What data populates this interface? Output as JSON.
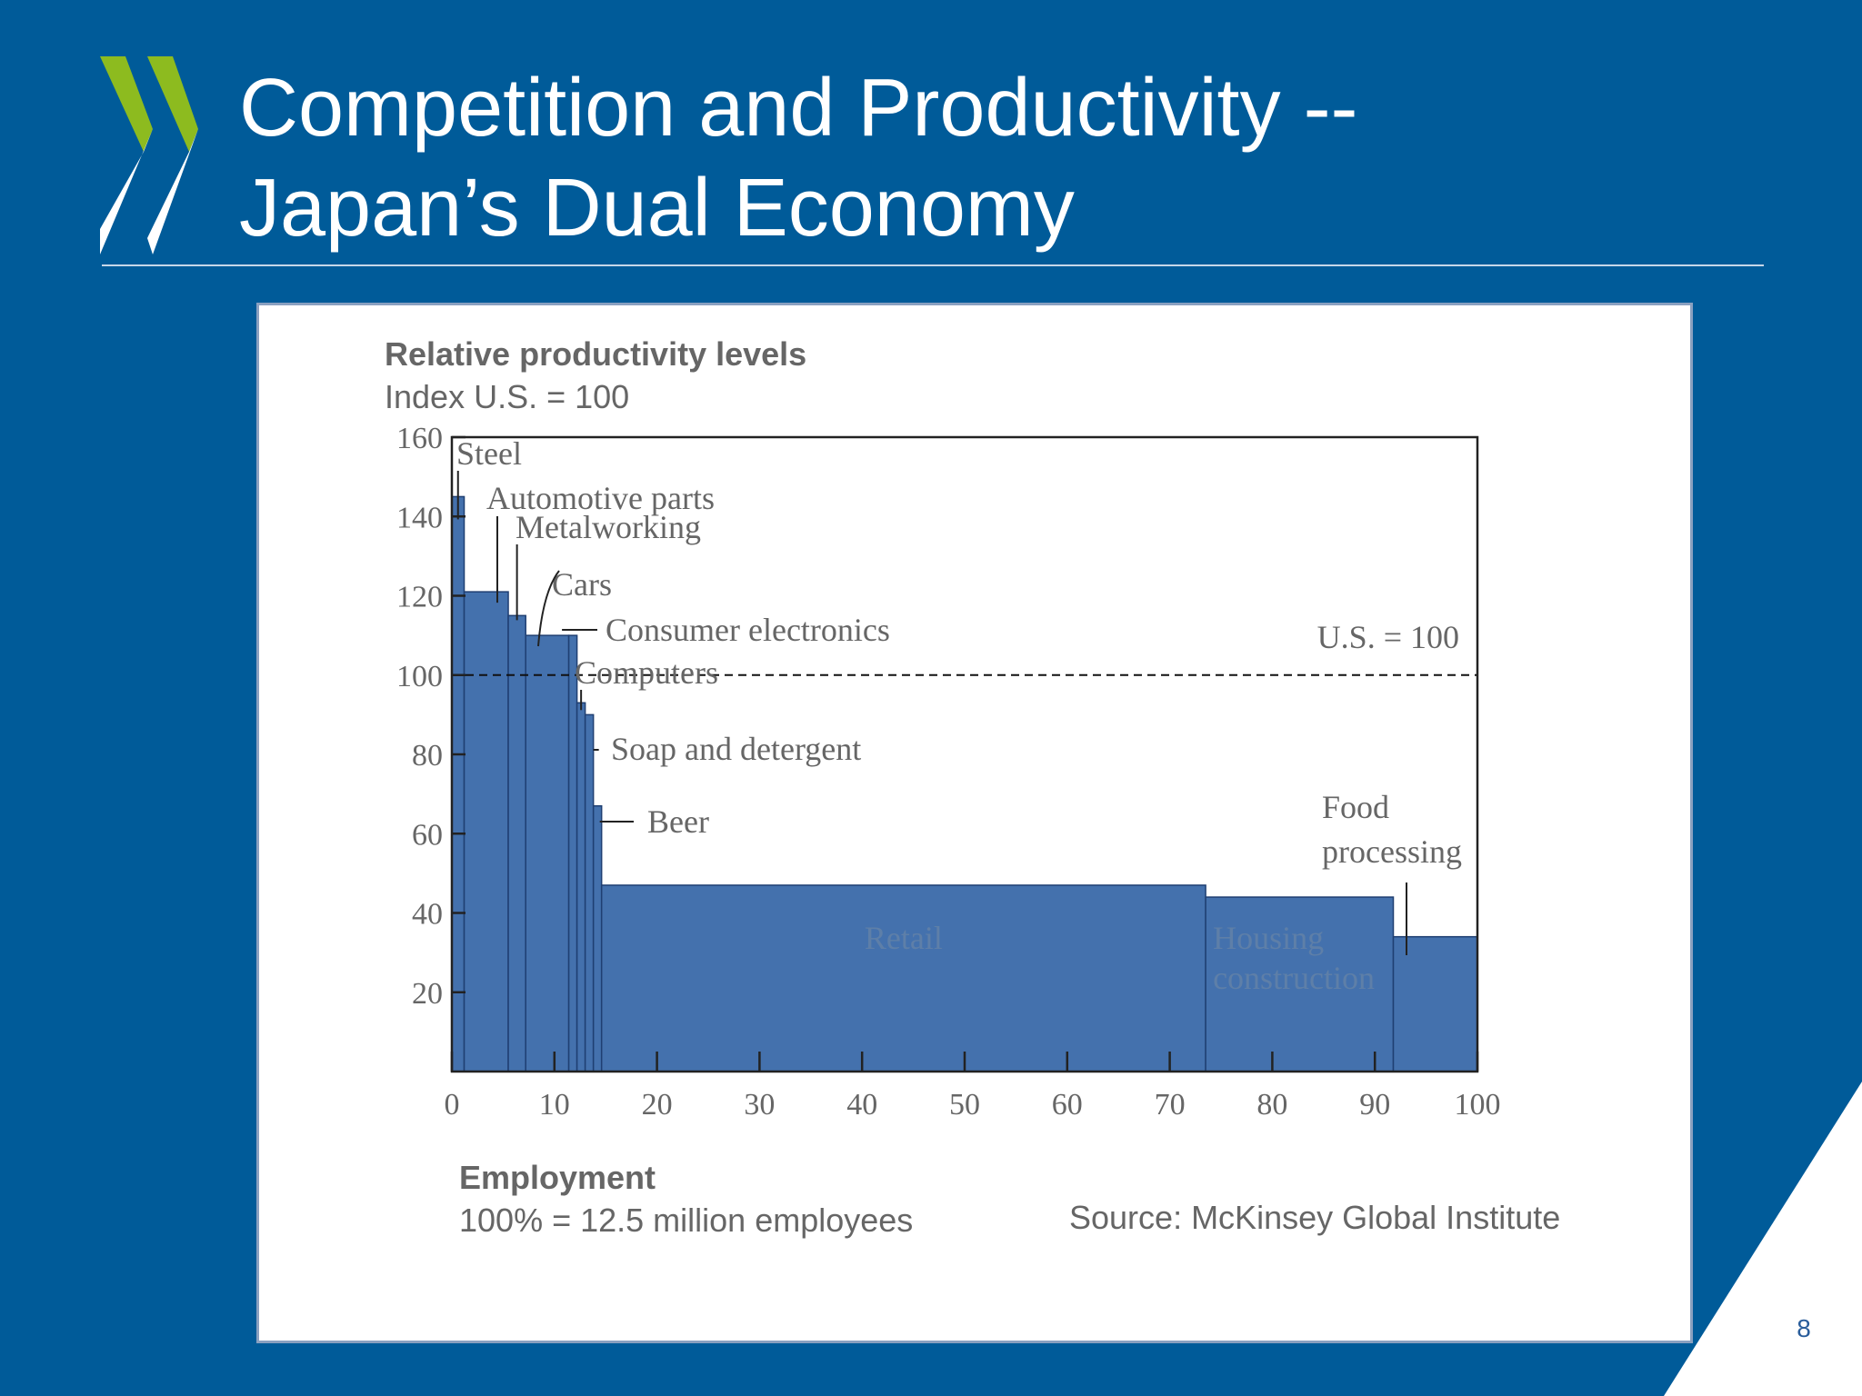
{
  "slide": {
    "title_lines": [
      "Competition and Productivity --",
      "Japan’s Dual Economy"
    ],
    "page_number": "8"
  },
  "colors": {
    "background": "#005b99",
    "bar_fill": "#4471ad",
    "bar_stroke": "#1f3f72",
    "logo_green": "#8dbb1f",
    "logo_white": "#ffffff"
  },
  "chart_data": {
    "type": "bar",
    "title": "Relative productivity levels",
    "subtitle": "Index U.S. = 100",
    "xlabel": "Employment",
    "xlabel_note": "100% = 12.5 million employees",
    "source": "Source: McKinsey Global Institute",
    "reference_line": {
      "value": 100,
      "label": "U.S. = 100"
    },
    "xlim": [
      0,
      100
    ],
    "ylim": [
      0,
      160
    ],
    "x_ticks": [
      "0",
      "10",
      "20",
      "30",
      "40",
      "50",
      "60",
      "70",
      "80",
      "90",
      "100"
    ],
    "y_ticks": [
      "20",
      "40",
      "60",
      "80",
      "100",
      "120",
      "140",
      "160"
    ],
    "segments": [
      {
        "name": "Steel",
        "x_start": 0,
        "x_end": 1.2,
        "value": 145
      },
      {
        "name": "Automotive parts",
        "x_start": 1.2,
        "x_end": 5.5,
        "value": 121
      },
      {
        "name": "Metalworking",
        "x_start": 5.5,
        "x_end": 7.2,
        "value": 115
      },
      {
        "name": "Cars",
        "x_start": 7.2,
        "x_end": 11.4,
        "value": 110
      },
      {
        "name": "Consumer electronics",
        "x_start": 11.4,
        "x_end": 12.2,
        "value": 110
      },
      {
        "name": "Computers",
        "x_start": 12.2,
        "x_end": 13.0,
        "value": 93
      },
      {
        "name": "Soap and detergent",
        "x_start": 13.0,
        "x_end": 13.8,
        "value": 90
      },
      {
        "name": "Beer",
        "x_start": 13.8,
        "x_end": 14.6,
        "value": 67
      },
      {
        "name": "Retail",
        "x_start": 14.6,
        "x_end": 73.5,
        "value": 47
      },
      {
        "name": "Housing construction",
        "x_start": 73.5,
        "x_end": 91.8,
        "value": 44
      },
      {
        "name": "Food processing",
        "x_start": 91.8,
        "x_end": 100,
        "value": 34
      }
    ],
    "inside_labels": [
      "Retail",
      "Housing construction"
    ],
    "callout_labels": {
      "Steel": "Steel",
      "Automotive parts": "Automotive parts",
      "Metalworking": "Metalworking",
      "Cars": "Cars",
      "Consumer electronics": "Consumer electronics",
      "Computers": "Computers",
      "Soap and detergent": "Soap and detergent",
      "Beer": "Beer",
      "Food processing": [
        "Food",
        "processing"
      ]
    },
    "housing_label_lines": [
      "Housing",
      "construction"
    ]
  }
}
